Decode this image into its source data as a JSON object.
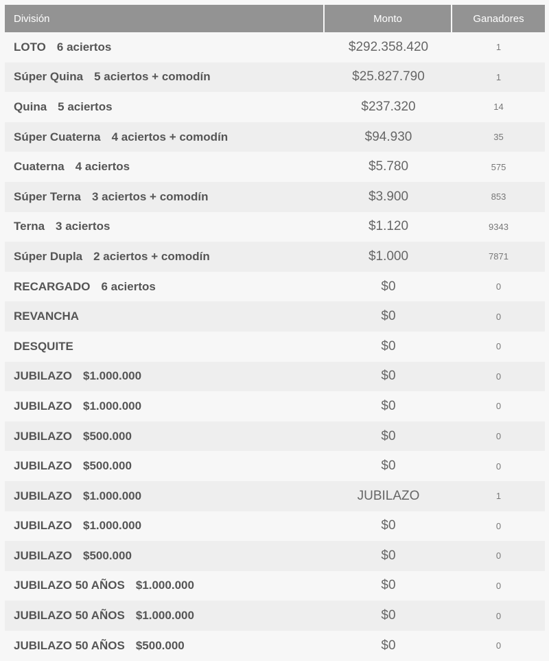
{
  "table": {
    "headers": {
      "division": "División",
      "monto": "Monto",
      "ganadores": "Ganadores"
    },
    "rows": [
      {
        "name": "LOTO",
        "detail": "6 aciertos",
        "monto": "$292.358.420",
        "ganadores": "1"
      },
      {
        "name": "Súper Quina",
        "detail": "5 aciertos + comodín",
        "monto": "$25.827.790",
        "ganadores": "1"
      },
      {
        "name": "Quina",
        "detail": "5 aciertos",
        "monto": "$237.320",
        "ganadores": "14"
      },
      {
        "name": "Súper Cuaterna",
        "detail": "4 aciertos + comodín",
        "monto": "$94.930",
        "ganadores": "35"
      },
      {
        "name": "Cuaterna",
        "detail": "4 aciertos",
        "monto": "$5.780",
        "ganadores": "575"
      },
      {
        "name": "Súper Terna",
        "detail": "3 aciertos + comodín",
        "monto": "$3.900",
        "ganadores": "853"
      },
      {
        "name": "Terna",
        "detail": "3 aciertos",
        "monto": "$1.120",
        "ganadores": "9343"
      },
      {
        "name": "Súper Dupla",
        "detail": "2 aciertos + comodín",
        "monto": "$1.000",
        "ganadores": "7871"
      },
      {
        "name": "RECARGADO",
        "detail": "6 aciertos",
        "monto": "$0",
        "ganadores": "0"
      },
      {
        "name": "REVANCHA",
        "detail": "",
        "monto": "$0",
        "ganadores": "0"
      },
      {
        "name": "DESQUITE",
        "detail": "",
        "monto": "$0",
        "ganadores": "0"
      },
      {
        "name": "JUBILAZO",
        "detail": "$1.000.000",
        "monto": "$0",
        "ganadores": "0"
      },
      {
        "name": "JUBILAZO",
        "detail": "$1.000.000",
        "monto": "$0",
        "ganadores": "0"
      },
      {
        "name": "JUBILAZO",
        "detail": "$500.000",
        "monto": "$0",
        "ganadores": "0"
      },
      {
        "name": "JUBILAZO",
        "detail": "$500.000",
        "monto": "$0",
        "ganadores": "0"
      },
      {
        "name": "JUBILAZO",
        "detail": "$1.000.000",
        "monto": "JUBILAZO",
        "ganadores": "1"
      },
      {
        "name": "JUBILAZO",
        "detail": "$1.000.000",
        "monto": "$0",
        "ganadores": "0"
      },
      {
        "name": "JUBILAZO",
        "detail": "$500.000",
        "monto": "$0",
        "ganadores": "0"
      },
      {
        "name": "JUBILAZO 50 AÑOS",
        "detail": "$1.000.000",
        "monto": "$0",
        "ganadores": "0"
      },
      {
        "name": "JUBILAZO 50 AÑOS",
        "detail": "$1.000.000",
        "monto": "$0",
        "ganadores": "0"
      },
      {
        "name": "JUBILAZO 50 AÑOS",
        "detail": "$500.000",
        "monto": "$0",
        "ganadores": "0"
      }
    ]
  }
}
